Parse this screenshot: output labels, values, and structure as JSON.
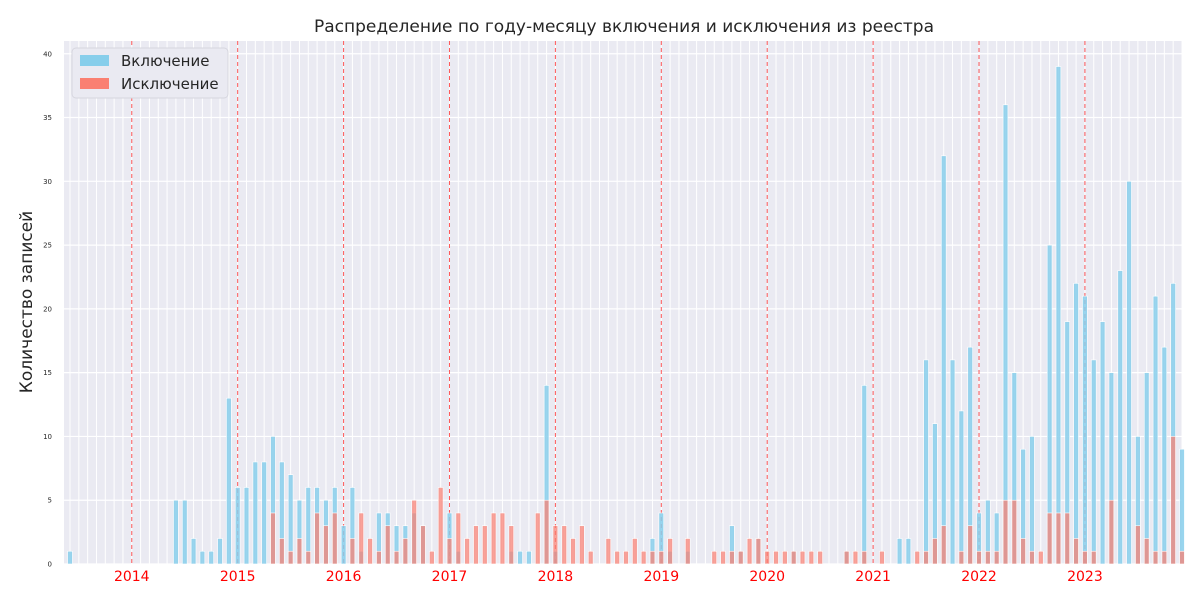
{
  "chart_data": {
    "type": "bar",
    "title": "Распределение по году-месяцу включения и исключения из реестра",
    "xlabel": "",
    "ylabel": "Количество записей",
    "ylim": [
      0,
      41
    ],
    "yticks": [
      "0",
      "5",
      "10",
      "15",
      "20",
      "25",
      "30",
      "35",
      "40"
    ],
    "x_start": "2013-06",
    "x_end": "2023-12",
    "year_ticks": [
      {
        "label": "2014",
        "month": "2014-01"
      },
      {
        "label": "2015",
        "month": "2015-01"
      },
      {
        "label": "2016",
        "month": "2016-01"
      },
      {
        "label": "2017",
        "month": "2017-01"
      },
      {
        "label": "2018",
        "month": "2018-01"
      },
      {
        "label": "2019",
        "month": "2019-01"
      },
      {
        "label": "2020",
        "month": "2020-01"
      },
      {
        "label": "2021",
        "month": "2021-01"
      },
      {
        "label": "2022",
        "month": "2022-01"
      },
      {
        "label": "2023",
        "month": "2023-01"
      }
    ],
    "grid": true,
    "legend_position": "upper-left",
    "series": [
      {
        "name": "Включение",
        "color": "#87ceeb",
        "points": [
          {
            "x": "2013-06",
            "y": 1
          },
          {
            "x": "2014-06",
            "y": 5
          },
          {
            "x": "2014-07",
            "y": 5
          },
          {
            "x": "2014-08",
            "y": 2
          },
          {
            "x": "2014-09",
            "y": 1
          },
          {
            "x": "2014-10",
            "y": 1
          },
          {
            "x": "2014-11",
            "y": 2
          },
          {
            "x": "2014-12",
            "y": 13
          },
          {
            "x": "2015-01",
            "y": 6
          },
          {
            "x": "2015-02",
            "y": 6
          },
          {
            "x": "2015-03",
            "y": 8
          },
          {
            "x": "2015-04",
            "y": 8
          },
          {
            "x": "2015-05",
            "y": 10
          },
          {
            "x": "2015-06",
            "y": 8
          },
          {
            "x": "2015-07",
            "y": 7
          },
          {
            "x": "2015-08",
            "y": 5
          },
          {
            "x": "2015-09",
            "y": 6
          },
          {
            "x": "2015-10",
            "y": 6
          },
          {
            "x": "2015-11",
            "y": 5
          },
          {
            "x": "2015-12",
            "y": 6
          },
          {
            "x": "2016-01",
            "y": 3
          },
          {
            "x": "2016-02",
            "y": 6
          },
          {
            "x": "2016-03",
            "y": 1
          },
          {
            "x": "2016-05",
            "y": 4
          },
          {
            "x": "2016-06",
            "y": 4
          },
          {
            "x": "2016-07",
            "y": 3
          },
          {
            "x": "2016-08",
            "y": 3
          },
          {
            "x": "2016-09",
            "y": 4
          },
          {
            "x": "2016-10",
            "y": 3
          },
          {
            "x": "2017-01",
            "y": 4
          },
          {
            "x": "2017-02",
            "y": 1
          },
          {
            "x": "2017-08",
            "y": 1
          },
          {
            "x": "2017-09",
            "y": 1
          },
          {
            "x": "2017-10",
            "y": 1
          },
          {
            "x": "2017-12",
            "y": 14
          },
          {
            "x": "2018-01",
            "y": 1
          },
          {
            "x": "2018-12",
            "y": 2
          },
          {
            "x": "2019-01",
            "y": 4
          },
          {
            "x": "2019-02",
            "y": 1
          },
          {
            "x": "2019-04",
            "y": 1
          },
          {
            "x": "2019-09",
            "y": 3
          },
          {
            "x": "2019-10",
            "y": 1
          },
          {
            "x": "2019-12",
            "y": 2
          },
          {
            "x": "2020-04",
            "y": 1
          },
          {
            "x": "2020-10",
            "y": 1
          },
          {
            "x": "2020-12",
            "y": 14
          },
          {
            "x": "2021-04",
            "y": 2
          },
          {
            "x": "2021-05",
            "y": 2
          },
          {
            "x": "2021-07",
            "y": 16
          },
          {
            "x": "2021-08",
            "y": 11
          },
          {
            "x": "2021-09",
            "y": 32
          },
          {
            "x": "2021-10",
            "y": 16
          },
          {
            "x": "2021-11",
            "y": 12
          },
          {
            "x": "2021-12",
            "y": 17
          },
          {
            "x": "2022-01",
            "y": 4
          },
          {
            "x": "2022-02",
            "y": 5
          },
          {
            "x": "2022-03",
            "y": 4
          },
          {
            "x": "2022-04",
            "y": 36
          },
          {
            "x": "2022-05",
            "y": 15
          },
          {
            "x": "2022-06",
            "y": 9
          },
          {
            "x": "2022-07",
            "y": 10
          },
          {
            "x": "2022-09",
            "y": 25
          },
          {
            "x": "2022-10",
            "y": 39
          },
          {
            "x": "2022-11",
            "y": 19
          },
          {
            "x": "2022-12",
            "y": 22
          },
          {
            "x": "2023-01",
            "y": 21
          },
          {
            "x": "2023-02",
            "y": 16
          },
          {
            "x": "2023-03",
            "y": 19
          },
          {
            "x": "2023-04",
            "y": 15
          },
          {
            "x": "2023-05",
            "y": 23
          },
          {
            "x": "2023-06",
            "y": 30
          },
          {
            "x": "2023-07",
            "y": 10
          },
          {
            "x": "2023-08",
            "y": 15
          },
          {
            "x": "2023-09",
            "y": 21
          },
          {
            "x": "2023-10",
            "y": 17
          },
          {
            "x": "2023-11",
            "y": 22
          },
          {
            "x": "2023-12",
            "y": 9
          }
        ]
      },
      {
        "name": "Исключение",
        "color": "#fa8072",
        "points": [
          {
            "x": "2015-05",
            "y": 4
          },
          {
            "x": "2015-06",
            "y": 2
          },
          {
            "x": "2015-07",
            "y": 1
          },
          {
            "x": "2015-08",
            "y": 2
          },
          {
            "x": "2015-09",
            "y": 1
          },
          {
            "x": "2015-10",
            "y": 4
          },
          {
            "x": "2015-11",
            "y": 3
          },
          {
            "x": "2015-12",
            "y": 4
          },
          {
            "x": "2016-02",
            "y": 2
          },
          {
            "x": "2016-03",
            "y": 4
          },
          {
            "x": "2016-04",
            "y": 2
          },
          {
            "x": "2016-05",
            "y": 1
          },
          {
            "x": "2016-06",
            "y": 3
          },
          {
            "x": "2016-07",
            "y": 1
          },
          {
            "x": "2016-08",
            "y": 2
          },
          {
            "x": "2016-09",
            "y": 5
          },
          {
            "x": "2016-10",
            "y": 3
          },
          {
            "x": "2016-11",
            "y": 1
          },
          {
            "x": "2016-12",
            "y": 6
          },
          {
            "x": "2017-01",
            "y": 2
          },
          {
            "x": "2017-02",
            "y": 4
          },
          {
            "x": "2017-03",
            "y": 2
          },
          {
            "x": "2017-04",
            "y": 3
          },
          {
            "x": "2017-05",
            "y": 3
          },
          {
            "x": "2017-06",
            "y": 4
          },
          {
            "x": "2017-07",
            "y": 4
          },
          {
            "x": "2017-08",
            "y": 3
          },
          {
            "x": "2017-11",
            "y": 4
          },
          {
            "x": "2017-12",
            "y": 5
          },
          {
            "x": "2018-01",
            "y": 3
          },
          {
            "x": "2018-02",
            "y": 3
          },
          {
            "x": "2018-03",
            "y": 2
          },
          {
            "x": "2018-04",
            "y": 3
          },
          {
            "x": "2018-05",
            "y": 1
          },
          {
            "x": "2018-07",
            "y": 2
          },
          {
            "x": "2018-08",
            "y": 1
          },
          {
            "x": "2018-09",
            "y": 1
          },
          {
            "x": "2018-10",
            "y": 2
          },
          {
            "x": "2018-11",
            "y": 1
          },
          {
            "x": "2018-12",
            "y": 1
          },
          {
            "x": "2019-01",
            "y": 1
          },
          {
            "x": "2019-02",
            "y": 2
          },
          {
            "x": "2019-04",
            "y": 2
          },
          {
            "x": "2019-07",
            "y": 1
          },
          {
            "x": "2019-08",
            "y": 1
          },
          {
            "x": "2019-09",
            "y": 1
          },
          {
            "x": "2019-10",
            "y": 1
          },
          {
            "x": "2019-11",
            "y": 2
          },
          {
            "x": "2019-12",
            "y": 2
          },
          {
            "x": "2020-01",
            "y": 1
          },
          {
            "x": "2020-02",
            "y": 1
          },
          {
            "x": "2020-03",
            "y": 1
          },
          {
            "x": "2020-04",
            "y": 1
          },
          {
            "x": "2020-05",
            "y": 1
          },
          {
            "x": "2020-06",
            "y": 1
          },
          {
            "x": "2020-07",
            "y": 1
          },
          {
            "x": "2020-10",
            "y": 1
          },
          {
            "x": "2020-11",
            "y": 1
          },
          {
            "x": "2020-12",
            "y": 1
          },
          {
            "x": "2021-02",
            "y": 1
          },
          {
            "x": "2021-06",
            "y": 1
          },
          {
            "x": "2021-07",
            "y": 1
          },
          {
            "x": "2021-08",
            "y": 2
          },
          {
            "x": "2021-09",
            "y": 3
          },
          {
            "x": "2021-11",
            "y": 1
          },
          {
            "x": "2021-12",
            "y": 3
          },
          {
            "x": "2022-01",
            "y": 1
          },
          {
            "x": "2022-02",
            "y": 1
          },
          {
            "x": "2022-03",
            "y": 1
          },
          {
            "x": "2022-04",
            "y": 5
          },
          {
            "x": "2022-05",
            "y": 5
          },
          {
            "x": "2022-06",
            "y": 2
          },
          {
            "x": "2022-07",
            "y": 1
          },
          {
            "x": "2022-08",
            "y": 1
          },
          {
            "x": "2022-09",
            "y": 4
          },
          {
            "x": "2022-10",
            "y": 4
          },
          {
            "x": "2022-11",
            "y": 4
          },
          {
            "x": "2022-12",
            "y": 2
          },
          {
            "x": "2023-01",
            "y": 1
          },
          {
            "x": "2023-02",
            "y": 1
          },
          {
            "x": "2023-04",
            "y": 5
          },
          {
            "x": "2023-07",
            "y": 3
          },
          {
            "x": "2023-08",
            "y": 2
          },
          {
            "x": "2023-09",
            "y": 1
          },
          {
            "x": "2023-10",
            "y": 1
          },
          {
            "x": "2023-11",
            "y": 10
          },
          {
            "x": "2023-12",
            "y": 1
          }
        ]
      }
    ]
  }
}
